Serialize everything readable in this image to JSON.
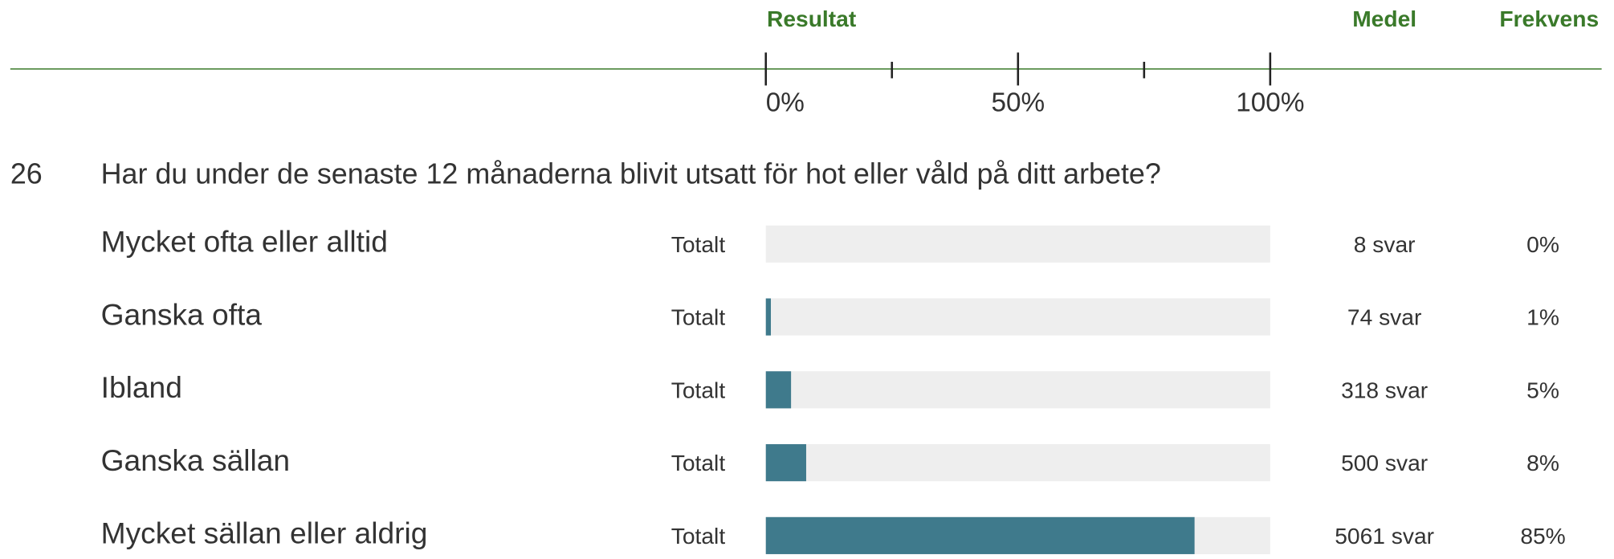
{
  "chart_data": {
    "type": "bar",
    "headers": {
      "result": "Resultat",
      "mean": "Medel",
      "frequency": "Frekvens"
    },
    "question_number": "26",
    "question": "Har du under de senaste 12 månaderna blivit utsatt för hot eller våld på ditt arbete?",
    "categories": [
      "Mycket ofta eller alltid",
      "Ganska ofta",
      "Ibland",
      "Ganska sällan",
      "Mycket sällan eller aldrig"
    ],
    "group_labels": [
      "Totalt",
      "Totalt",
      "Totalt",
      "Totalt",
      "Totalt"
    ],
    "count_labels": [
      "8 svar",
      "74 svar",
      "318 svar",
      "500 svar",
      "5061 svar"
    ],
    "values": [
      0,
      1,
      5,
      8,
      85
    ],
    "value_labels": [
      "0%",
      "1%",
      "5%",
      "8%",
      "85%"
    ],
    "xlim": [
      0,
      100
    ],
    "xticks": [
      {
        "value": 0,
        "label": "0%"
      },
      {
        "value": 50,
        "label": "50%"
      },
      {
        "value": 100,
        "label": "100%"
      }
    ],
    "xminor_ticks": [
      25,
      75
    ],
    "color": "#3f7a8c",
    "track_color": "#eeeeee",
    "rule_color": "#3a7a2a"
  }
}
